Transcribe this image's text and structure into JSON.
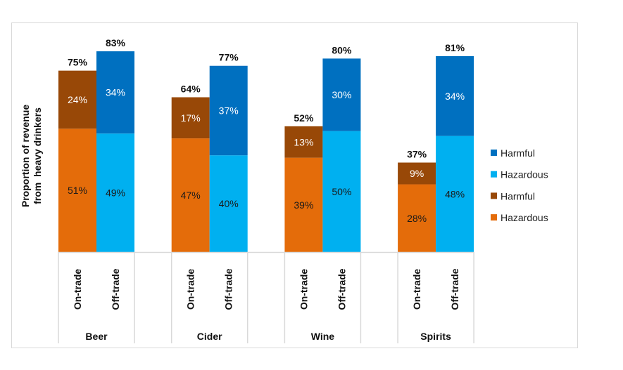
{
  "chart_data": {
    "type": "bar",
    "stacked": true,
    "title": "",
    "ylabel_lines": [
      "Proportion of revenue",
      "from  heavy drinkers"
    ],
    "xlabel": "",
    "ylim": [
      0,
      100
    ],
    "grid": false,
    "groups": [
      {
        "name": "Beer",
        "bars": [
          {
            "name": "On-trade",
            "hazardous": 51,
            "harmful": 24,
            "total": 75,
            "hazardous_label": "51%",
            "harmful_label": "24%",
            "total_label": "75%"
          },
          {
            "name": "Off-trade",
            "hazardous": 49,
            "harmful": 34,
            "total": 83,
            "hazardous_label": "49%",
            "harmful_label": "34%",
            "total_label": "83%"
          }
        ]
      },
      {
        "name": "Cider",
        "bars": [
          {
            "name": "On-trade",
            "hazardous": 47,
            "harmful": 17,
            "total": 64,
            "hazardous_label": "47%",
            "harmful_label": "17%",
            "total_label": "64%"
          },
          {
            "name": "Off-trade",
            "hazardous": 40,
            "harmful": 37,
            "total": 77,
            "hazardous_label": "40%",
            "harmful_label": "37%",
            "total_label": "77%"
          }
        ]
      },
      {
        "name": "Wine",
        "bars": [
          {
            "name": "On-trade",
            "hazardous": 39,
            "harmful": 13,
            "total": 52,
            "hazardous_label": "39%",
            "harmful_label": "13%",
            "total_label": "52%"
          },
          {
            "name": "Off-trade",
            "hazardous": 50,
            "harmful": 30,
            "total": 80,
            "hazardous_label": "50%",
            "harmful_label": "30%",
            "total_label": "80%"
          }
        ]
      },
      {
        "name": "Spirits",
        "bars": [
          {
            "name": "On-trade",
            "hazardous": 28,
            "harmful": 9,
            "total": 37,
            "hazardous_label": "28%",
            "harmful_label": "9%",
            "total_label": "37%"
          },
          {
            "name": "Off-trade",
            "hazardous": 48,
            "harmful": 34,
            "total": 81,
            "hazardous_label": "48%",
            "harmful_label": "34%",
            "total_label": "81%"
          }
        ]
      }
    ],
    "colors": {
      "on_trade_hazardous": "#E46C0A",
      "on_trade_harmful": "#984807",
      "off_trade_hazardous": "#00B0F0",
      "off_trade_harmful": "#0070C0"
    },
    "legend": {
      "position": "right",
      "entries": [
        {
          "label": "Harmful",
          "color": "#0070C0"
        },
        {
          "label": "Hazardous",
          "color": "#00B0F0"
        },
        {
          "label": "Harmful",
          "color": "#984807"
        },
        {
          "label": "Hazardous",
          "color": "#E46C0A"
        }
      ]
    }
  }
}
